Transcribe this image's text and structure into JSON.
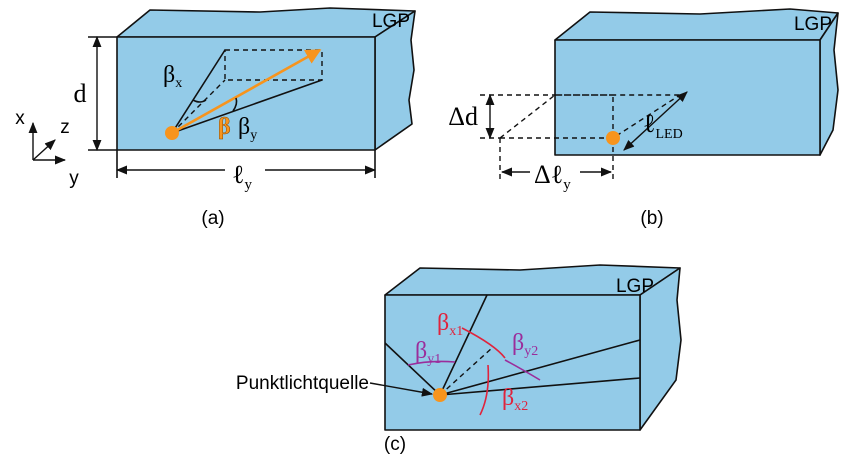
{
  "panels": [
    {
      "caption": "(a)",
      "block_label": "LGP",
      "height_label": "d",
      "axes": [
        "x",
        "z",
        "y"
      ],
      "angle_x": {
        "main": "β",
        "sub": "x"
      },
      "angle": "β",
      "angle_y": {
        "main": "β",
        "sub": "y"
      },
      "length_label": {
        "main": "ℓ",
        "sub": "y"
      }
    },
    {
      "caption": "(b)",
      "block_label": "LGP",
      "offset_d": "Δd",
      "led_length": {
        "main": "ℓ",
        "sub": "LED"
      },
      "offset_l": {
        "main": "Δℓ",
        "sub": "y"
      }
    },
    {
      "caption": "(c)",
      "block_label": "LGP",
      "source_label": "Punktlichtquelle",
      "angles": [
        {
          "main": "β",
          "sub": "x1"
        },
        {
          "main": "β",
          "sub": "y1"
        },
        {
          "main": "β",
          "sub": "y2"
        },
        {
          "main": "β",
          "sub": "x2"
        }
      ]
    }
  ]
}
